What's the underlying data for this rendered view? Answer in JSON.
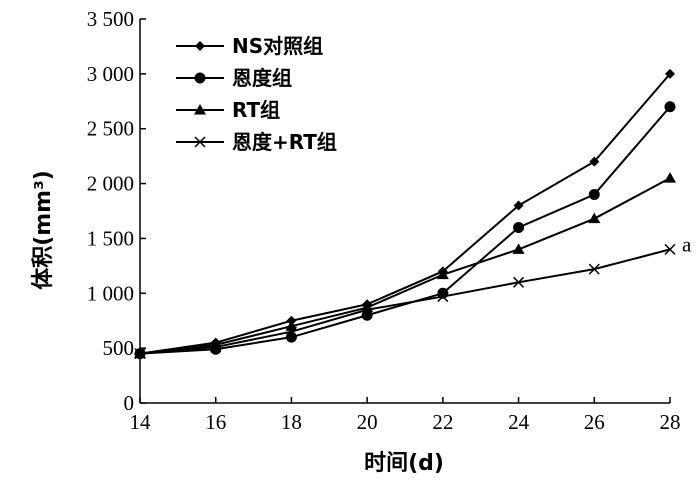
{
  "chart_data": {
    "type": "line",
    "title": "",
    "xlabel": "时间(d)",
    "ylabel": "体积(mm³)",
    "x": [
      14,
      16,
      18,
      20,
      22,
      24,
      26,
      28
    ],
    "xlim": [
      14,
      28
    ],
    "ylim": [
      0,
      3500
    ],
    "xticks": [
      "14",
      "16",
      "18",
      "20",
      "22",
      "24",
      "26",
      "28"
    ],
    "yticks": [
      "0",
      "500",
      "1 000",
      "1 500",
      "2 000",
      "2 500",
      "3 000",
      "3 500"
    ],
    "grid": false,
    "legend_position": "top-left",
    "series": [
      {
        "name": "NS对照组",
        "marker": "diamond",
        "values": [
          450,
          550,
          750,
          900,
          1200,
          1800,
          2200,
          3000
        ]
      },
      {
        "name": "恩度组",
        "marker": "circle",
        "values": [
          450,
          490,
          600,
          800,
          1000,
          1600,
          1900,
          2700
        ]
      },
      {
        "name": "RT组",
        "marker": "triangle",
        "values": [
          450,
          530,
          700,
          870,
          1170,
          1400,
          1680,
          2050
        ]
      },
      {
        "name": "恩度+RT组",
        "marker": "x",
        "values": [
          450,
          510,
          650,
          850,
          970,
          1100,
          1220,
          1400
        ]
      }
    ],
    "annotations": [
      {
        "text": "a",
        "series": "恩度+RT组",
        "x": 28
      }
    ]
  }
}
